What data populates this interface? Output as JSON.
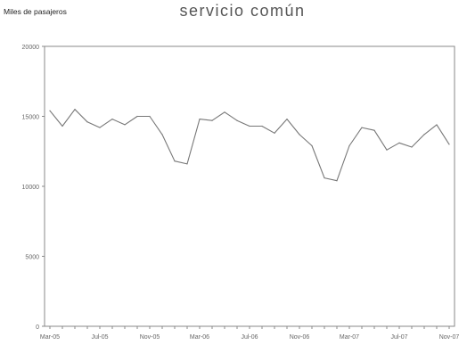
{
  "chart_data": {
    "type": "line",
    "title": "servicio común",
    "ylabel": "Miles de pasajeros",
    "xlabel": "",
    "ylim": [
      0,
      20000
    ],
    "yticks": [
      {
        "value": 20000,
        "label": "20000"
      },
      {
        "value": 15000,
        "label": "15000"
      },
      {
        "value": 10000,
        "label": "10000"
      },
      {
        "value": 5000,
        "label": "5000"
      },
      {
        "value": 0,
        "label": "0"
      }
    ],
    "xtick_labels": [
      {
        "index": 0,
        "label": "Mar-05"
      },
      {
        "index": 4,
        "label": "Jul-05"
      },
      {
        "index": 8,
        "label": "Nov-05"
      },
      {
        "index": 12,
        "label": "Mar-06"
      },
      {
        "index": 16,
        "label": "Jul-06"
      },
      {
        "index": 20,
        "label": "Nov-06"
      },
      {
        "index": 24,
        "label": "Mar-07"
      },
      {
        "index": 28,
        "label": "Jul-07"
      },
      {
        "index": 32,
        "label": "Nov-07"
      }
    ],
    "series": [
      {
        "color": "#777777",
        "values": [
          15400,
          14300,
          15500,
          14600,
          14200,
          14800,
          14400,
          15000,
          15000,
          13700,
          11800,
          11600,
          14800,
          14700,
          15300,
          14700,
          14300,
          14300,
          13800,
          14800,
          13700,
          12900,
          10600,
          10400,
          12900,
          14200,
          14000,
          12600,
          13100,
          12800,
          13700,
          14400,
          13000
        ]
      }
    ],
    "grid": false,
    "legend": "none"
  }
}
